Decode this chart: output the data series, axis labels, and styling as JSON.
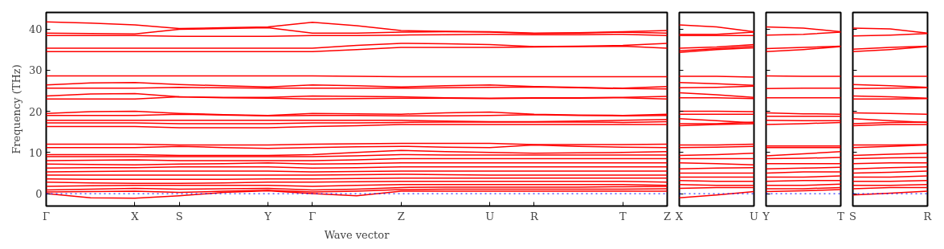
{
  "chart_data": [
    {
      "type": "line",
      "xlabel": "Wave vector",
      "ylabel": "Frequency (THz)",
      "grid": false,
      "categories": [
        "Γ",
        null,
        "X",
        "S",
        null,
        "Y",
        "Γ",
        null,
        "Z",
        null,
        "U",
        "R",
        null,
        "T",
        "Z"
      ],
      "ylim": [
        -3,
        44
      ],
      "yticks": [
        0,
        10,
        20,
        30,
        40
      ],
      "ref_lines": [
        {
          "axis": "y",
          "value": 0,
          "color": "#0000ff",
          "line_style": "dotted"
        }
      ],
      "series": [
        {
          "color": "#ff0000",
          "values": [
            41.7,
            41.4,
            41.0,
            40.1,
            40.3,
            40.5,
            41.6,
            40.8,
            39.6,
            39.4,
            39.3,
            39.0,
            39.1,
            39.3,
            39.6
          ]
        },
        {
          "color": "#ff0000",
          "values": [
            39.0,
            38.9,
            38.8,
            39.9,
            40.1,
            40.3,
            39.0,
            39.0,
            39.2,
            39.3,
            39.2,
            38.9,
            39.0,
            39.2,
            39.0
          ]
        },
        {
          "color": "#ff0000",
          "values": [
            38.4,
            38.4,
            38.4,
            38.2,
            38.2,
            38.2,
            38.4,
            38.4,
            38.5,
            38.6,
            38.7,
            38.6,
            38.6,
            38.7,
            38.4
          ]
        },
        {
          "color": "#ff0000",
          "values": [
            35.3,
            35.3,
            35.3,
            35.3,
            35.3,
            35.3,
            35.3,
            36.0,
            36.5,
            36.4,
            36.2,
            35.7,
            35.8,
            36.0,
            36.5
          ]
        },
        {
          "color": "#ff0000",
          "values": [
            34.5,
            34.5,
            34.5,
            34.5,
            34.5,
            34.5,
            34.5,
            35.0,
            35.5,
            35.5,
            35.5,
            35.6,
            35.7,
            35.8,
            35.3
          ]
        },
        {
          "color": "#ff0000",
          "values": [
            28.6,
            28.6,
            28.6,
            28.6,
            28.6,
            28.6,
            28.6,
            28.5,
            28.4,
            28.4,
            28.4,
            28.4,
            28.4,
            28.4,
            28.4
          ]
        },
        {
          "color": "#ff0000",
          "values": [
            26.4,
            26.9,
            27.0,
            26.5,
            26.2,
            25.9,
            26.4,
            26.2,
            25.9,
            26.2,
            26.4,
            26.0,
            25.8,
            25.6,
            26.0
          ]
        },
        {
          "color": "#ff0000",
          "values": [
            25.6,
            25.6,
            25.6,
            25.8,
            25.7,
            25.6,
            25.6,
            25.6,
            25.6,
            25.7,
            25.8,
            25.9,
            25.7,
            25.5,
            25.4
          ]
        },
        {
          "color": "#ff0000",
          "values": [
            23.7,
            24.2,
            24.3,
            23.5,
            23.4,
            23.4,
            23.7,
            23.6,
            23.5,
            23.3,
            23.2,
            23.3,
            23.3,
            23.4,
            23.6
          ]
        },
        {
          "color": "#ff0000",
          "values": [
            23.0,
            23.0,
            23.0,
            23.5,
            23.3,
            23.2,
            23.0,
            23.1,
            23.2,
            23.2,
            23.1,
            23.2,
            23.2,
            23.3,
            23.0
          ]
        },
        {
          "color": "#ff0000",
          "values": [
            19.5,
            19.9,
            20.0,
            19.5,
            19.2,
            19.0,
            19.5,
            19.4,
            19.3,
            19.6,
            19.8,
            19.3,
            19.1,
            19.0,
            19.3
          ]
        },
        {
          "color": "#ff0000",
          "values": [
            19.0,
            19.0,
            19.0,
            19.3,
            19.1,
            18.9,
            19.0,
            19.0,
            18.9,
            18.9,
            19.0,
            19.2,
            19.0,
            18.9,
            19.0
          ]
        },
        {
          "color": "#ff0000",
          "values": [
            17.8,
            17.8,
            17.8,
            17.8,
            17.8,
            17.8,
            17.8,
            17.8,
            17.8,
            17.6,
            17.5,
            17.5,
            17.6,
            17.8,
            18.0
          ]
        },
        {
          "color": "#ff0000",
          "values": [
            17.2,
            17.2,
            17.2,
            17.0,
            17.0,
            17.0,
            17.2,
            17.2,
            17.3,
            17.4,
            17.4,
            17.4,
            17.4,
            17.3,
            17.5
          ]
        },
        {
          "color": "#ff0000",
          "values": [
            16.3,
            16.3,
            16.3,
            16.0,
            16.0,
            16.0,
            16.3,
            16.5,
            16.8,
            16.8,
            16.8,
            16.8,
            16.8,
            16.8,
            16.8
          ]
        },
        {
          "color": "#ff0000",
          "values": [
            12.0,
            12.0,
            12.0,
            11.8,
            11.8,
            11.8,
            12.0,
            12.1,
            12.2,
            12.2,
            12.2,
            11.9,
            11.9,
            11.9,
            12.0
          ]
        },
        {
          "color": "#ff0000",
          "values": [
            11.2,
            11.2,
            11.2,
            11.5,
            11.2,
            11.0,
            11.2,
            11.4,
            11.5,
            11.3,
            11.2,
            11.8,
            11.5,
            11.3,
            11.2
          ]
        },
        {
          "color": "#ff0000",
          "values": [
            9.5,
            9.5,
            9.5,
            9.3,
            9.3,
            9.3,
            9.5,
            10.0,
            10.5,
            10.2,
            10.0,
            9.8,
            9.9,
            10.0,
            10.2
          ]
        },
        {
          "color": "#ff0000",
          "values": [
            9.0,
            9.0,
            9.0,
            9.0,
            9.0,
            9.0,
            9.0,
            9.2,
            9.5,
            9.4,
            9.4,
            9.4,
            9.4,
            9.4,
            9.4
          ]
        },
        {
          "color": "#ff0000",
          "values": [
            8.0,
            8.1,
            8.2,
            8.0,
            8.0,
            8.0,
            8.0,
            8.2,
            8.5,
            8.5,
            8.5,
            8.5,
            8.5,
            8.5,
            8.5
          ]
        },
        {
          "color": "#ff0000",
          "values": [
            7.2,
            7.1,
            7.0,
            7.2,
            7.3,
            7.5,
            7.2,
            7.3,
            7.5,
            7.5,
            7.5,
            7.5,
            7.5,
            7.5,
            7.5
          ]
        },
        {
          "color": "#ff0000",
          "values": [
            6.2,
            6.3,
            6.3,
            6.5,
            6.5,
            6.5,
            6.2,
            6.3,
            6.5,
            6.5,
            6.5,
            6.5,
            6.5,
            6.5,
            6.5
          ]
        },
        {
          "color": "#ff0000",
          "values": [
            5.3,
            5.4,
            5.5,
            5.5,
            5.5,
            5.5,
            5.3,
            5.4,
            5.5,
            5.5,
            5.5,
            5.5,
            5.5,
            5.5,
            5.5
          ]
        },
        {
          "color": "#ff0000",
          "values": [
            4.5,
            4.5,
            4.5,
            4.5,
            4.5,
            4.5,
            4.5,
            4.6,
            4.7,
            4.6,
            4.5,
            4.5,
            4.5,
            4.5,
            4.5
          ]
        },
        {
          "color": "#ff0000",
          "values": [
            3.6,
            3.5,
            3.5,
            3.5,
            3.5,
            3.6,
            3.6,
            3.7,
            3.8,
            3.8,
            3.8,
            3.8,
            3.8,
            3.8,
            3.8
          ]
        },
        {
          "color": "#ff0000",
          "values": [
            2.8,
            2.6,
            2.5,
            2.5,
            2.6,
            2.8,
            2.8,
            2.9,
            3.0,
            3.0,
            3.0,
            3.0,
            3.0,
            3.0,
            2.8
          ]
        },
        {
          "color": "#ff0000",
          "values": [
            1.8,
            1.9,
            2.0,
            2.0,
            2.0,
            2.0,
            1.8,
            2.0,
            2.2,
            2.2,
            2.2,
            2.2,
            2.2,
            2.2,
            2.0
          ]
        },
        {
          "color": "#ff0000",
          "values": [
            0.9,
            1.1,
            1.3,
            1.1,
            1.2,
            1.3,
            0.9,
            1.1,
            1.5,
            1.6,
            1.6,
            1.6,
            1.6,
            1.7,
            1.8
          ]
        },
        {
          "color": "#ff0000",
          "values": [
            0.4,
            0.5,
            0.6,
            0.3,
            0.6,
            0.8,
            0.4,
            0.6,
            1.0,
            1.1,
            1.1,
            1.1,
            1.1,
            1.1,
            1.2
          ]
        },
        {
          "color": "#ff0000",
          "values": [
            0,
            -1.0,
            -1.1,
            -0.5,
            0.3,
            0.7,
            0,
            -0.5,
            0.6,
            0.6,
            0.6,
            0.6,
            0.6,
            0.6,
            0.6
          ]
        }
      ]
    },
    {
      "type": "line",
      "grid": false,
      "tick_labels": "x",
      "categories": [
        "X",
        null,
        "U"
      ],
      "ylim": [
        -3,
        44
      ],
      "yticks": [
        0,
        10,
        20,
        30,
        40
      ],
      "ref_lines": [
        {
          "axis": "y",
          "value": 0,
          "color": "#0000ff",
          "line_style": "dotted"
        }
      ],
      "series": [
        {
          "color": "#ff0000",
          "values": [
            41.0,
            40.5,
            39.3
          ]
        },
        {
          "color": "#ff0000",
          "values": [
            38.7,
            38.7,
            39.2
          ]
        },
        {
          "color": "#ff0000",
          "values": [
            38.4,
            38.4,
            38.4
          ]
        },
        {
          "color": "#ff0000",
          "values": [
            35.3,
            35.6,
            36.2
          ]
        },
        {
          "color": "#ff0000",
          "values": [
            34.7,
            35.2,
            35.8
          ]
        },
        {
          "color": "#ff0000",
          "values": [
            34.3,
            35.0,
            35.4
          ]
        },
        {
          "color": "#ff0000",
          "values": [
            28.5,
            28.5,
            28.3
          ]
        },
        {
          "color": "#ff0000",
          "values": [
            27.0,
            26.7,
            26.3
          ]
        },
        {
          "color": "#ff0000",
          "values": [
            25.7,
            25.8,
            26.1
          ]
        },
        {
          "color": "#ff0000",
          "values": [
            24.5,
            24.0,
            23.4
          ]
        },
        {
          "color": "#ff0000",
          "values": [
            23.3,
            23.3,
            23.1
          ]
        },
        {
          "color": "#ff0000",
          "values": [
            20.0,
            20.0,
            19.9
          ]
        },
        {
          "color": "#ff0000",
          "values": [
            19.3,
            19.3,
            19.3
          ]
        },
        {
          "color": "#ff0000",
          "values": [
            18.2,
            17.7,
            17.2
          ]
        },
        {
          "color": "#ff0000",
          "values": [
            17.0,
            17.0,
            17.4
          ]
        },
        {
          "color": "#ff0000",
          "values": [
            16.5,
            16.8,
            17.0
          ]
        },
        {
          "color": "#ff0000",
          "values": [
            11.8,
            11.8,
            12.0
          ]
        },
        {
          "color": "#ff0000",
          "values": [
            11.2,
            11.3,
            11.5
          ]
        },
        {
          "color": "#ff0000",
          "values": [
            9.3,
            9.5,
            9.8
          ]
        },
        {
          "color": "#ff0000",
          "values": [
            8.5,
            8.5,
            8.5
          ]
        },
        {
          "color": "#ff0000",
          "values": [
            7.5,
            7.3,
            7.0
          ]
        },
        {
          "color": "#ff0000",
          "values": [
            6.0,
            6.2,
            6.3
          ]
        },
        {
          "color": "#ff0000",
          "values": [
            5.0,
            5.0,
            5.0
          ]
        },
        {
          "color": "#ff0000",
          "values": [
            4.0,
            4.0,
            4.0
          ]
        },
        {
          "color": "#ff0000",
          "values": [
            3.2,
            3.0,
            3.0
          ]
        },
        {
          "color": "#ff0000",
          "values": [
            2.2,
            2.0,
            2.0
          ]
        },
        {
          "color": "#ff0000",
          "values": [
            1.3,
            1.5,
            1.5
          ]
        },
        {
          "color": "#ff0000",
          "values": [
            -1.0,
            -0.3,
            0.5
          ]
        }
      ]
    },
    {
      "type": "line",
      "grid": false,
      "tick_labels": "x",
      "categories": [
        "Y",
        null,
        "T"
      ],
      "ylim": [
        -3,
        44
      ],
      "yticks": [
        0,
        10,
        20,
        30,
        40
      ],
      "ref_lines": [
        {
          "axis": "y",
          "value": 0,
          "color": "#0000ff",
          "line_style": "dotted"
        }
      ],
      "series": [
        {
          "color": "#ff0000",
          "values": [
            40.5,
            40.2,
            39.3
          ]
        },
        {
          "color": "#ff0000",
          "values": [
            38.5,
            38.7,
            39.2
          ]
        },
        {
          "color": "#ff0000",
          "values": [
            35.2,
            35.5,
            35.8
          ]
        },
        {
          "color": "#ff0000",
          "values": [
            34.5,
            35.0,
            35.7
          ]
        },
        {
          "color": "#ff0000",
          "values": [
            28.6,
            28.5,
            28.5
          ]
        },
        {
          "color": "#ff0000",
          "values": [
            25.5,
            25.6,
            25.6
          ]
        },
        {
          "color": "#ff0000",
          "values": [
            23.3,
            23.3,
            23.3
          ]
        },
        {
          "color": "#ff0000",
          "values": [
            19.6,
            19.4,
            19.3
          ]
        },
        {
          "color": "#ff0000",
          "values": [
            18.8,
            18.8,
            18.8
          ]
        },
        {
          "color": "#ff0000",
          "values": [
            17.8,
            17.7,
            17.7
          ]
        },
        {
          "color": "#ff0000",
          "values": [
            16.8,
            17.0,
            17.3
          ]
        },
        {
          "color": "#ff0000",
          "values": [
            11.6,
            11.6,
            11.6
          ]
        },
        {
          "color": "#ff0000",
          "values": [
            11.2,
            11.2,
            11.2
          ]
        },
        {
          "color": "#ff0000",
          "values": [
            9.2,
            9.7,
            10.2
          ]
        },
        {
          "color": "#ff0000",
          "values": [
            8.5,
            8.6,
            8.8
          ]
        },
        {
          "color": "#ff0000",
          "values": [
            7.3,
            7.3,
            7.3
          ]
        },
        {
          "color": "#ff0000",
          "values": [
            6.0,
            6.2,
            6.4
          ]
        },
        {
          "color": "#ff0000",
          "values": [
            5.0,
            5.3,
            5.3
          ]
        },
        {
          "color": "#ff0000",
          "values": [
            4.0,
            4.0,
            4.3
          ]
        },
        {
          "color": "#ff0000",
          "values": [
            3.0,
            3.2,
            3.2
          ]
        },
        {
          "color": "#ff0000",
          "values": [
            2.0,
            2.0,
            2.3
          ]
        },
        {
          "color": "#ff0000",
          "values": [
            1.2,
            1.2,
            1.5
          ]
        },
        {
          "color": "#ff0000",
          "values": [
            0.5,
            0.7,
            1.0
          ]
        }
      ]
    },
    {
      "type": "line",
      "grid": false,
      "tick_labels": "x",
      "categories": [
        "S",
        null,
        "R"
      ],
      "ylim": [
        -3,
        44
      ],
      "yticks": [
        0,
        10,
        20,
        30,
        40
      ],
      "ref_lines": [
        {
          "axis": "y",
          "value": 0,
          "color": "#0000ff",
          "line_style": "dotted"
        }
      ],
      "series": [
        {
          "color": "#ff0000",
          "values": [
            40.2,
            40.0,
            39.0
          ]
        },
        {
          "color": "#ff0000",
          "values": [
            38.3,
            38.5,
            38.9
          ]
        },
        {
          "color": "#ff0000",
          "values": [
            35.1,
            35.5,
            35.8
          ]
        },
        {
          "color": "#ff0000",
          "values": [
            34.5,
            35.0,
            35.7
          ]
        },
        {
          "color": "#ff0000",
          "values": [
            28.5,
            28.5,
            28.5
          ]
        },
        {
          "color": "#ff0000",
          "values": [
            26.5,
            26.2,
            25.8
          ]
        },
        {
          "color": "#ff0000",
          "values": [
            25.5,
            25.6,
            25.7
          ]
        },
        {
          "color": "#ff0000",
          "values": [
            23.7,
            23.5,
            23.2
          ]
        },
        {
          "color": "#ff0000",
          "values": [
            23.0,
            23.0,
            23.1
          ]
        },
        {
          "color": "#ff0000",
          "values": [
            19.6,
            19.5,
            19.3
          ]
        },
        {
          "color": "#ff0000",
          "values": [
            18.2,
            17.7,
            17.3
          ]
        },
        {
          "color": "#ff0000",
          "values": [
            17.0,
            17.3,
            17.4
          ]
        },
        {
          "color": "#ff0000",
          "values": [
            16.5,
            16.8,
            16.8
          ]
        },
        {
          "color": "#ff0000",
          "values": [
            11.8,
            11.8,
            11.9
          ]
        },
        {
          "color": "#ff0000",
          "values": [
            11.2,
            11.5,
            11.8
          ]
        },
        {
          "color": "#ff0000",
          "values": [
            9.3,
            9.6,
            9.8
          ]
        },
        {
          "color": "#ff0000",
          "values": [
            8.5,
            8.7,
            8.8
          ]
        },
        {
          "color": "#ff0000",
          "values": [
            7.3,
            7.5,
            7.5
          ]
        },
        {
          "color": "#ff0000",
          "values": [
            6.0,
            6.3,
            6.5
          ]
        },
        {
          "color": "#ff0000",
          "values": [
            5.0,
            5.2,
            5.5
          ]
        },
        {
          "color": "#ff0000",
          "values": [
            4.0,
            4.0,
            4.3
          ]
        },
        {
          "color": "#ff0000",
          "values": [
            3.0,
            3.0,
            3.2
          ]
        },
        {
          "color": "#ff0000",
          "values": [
            2.0,
            2.0,
            2.2
          ]
        },
        {
          "color": "#ff0000",
          "values": [
            1.2,
            1.5,
            1.5
          ]
        },
        {
          "color": "#ff0000",
          "values": [
            -0.3,
            0.1,
            0.6
          ]
        }
      ]
    }
  ]
}
